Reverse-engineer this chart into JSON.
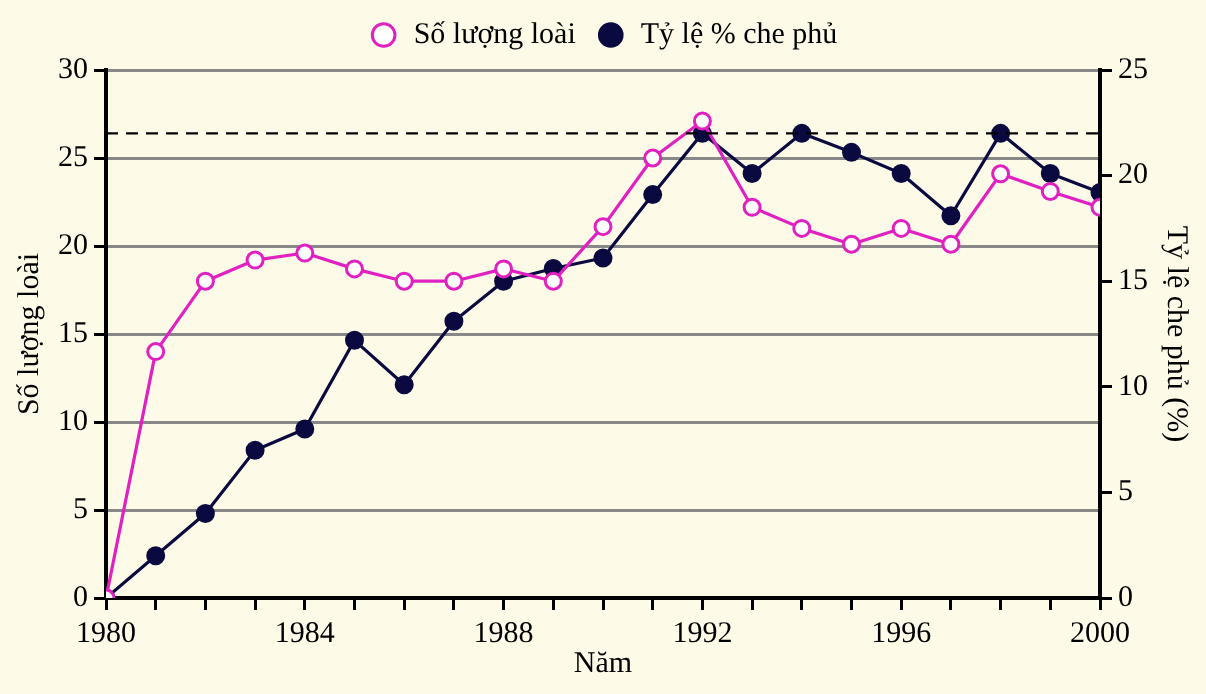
{
  "chart_data": {
    "type": "line",
    "xlabel": "Năm",
    "ylabel": "Số lượng loài",
    "y2label": "Tỷ lệ che phủ (%)",
    "x": [
      1980,
      1981,
      1982,
      1983,
      1984,
      1985,
      1986,
      1987,
      1988,
      1989,
      1990,
      1991,
      1992,
      1993,
      1994,
      1995,
      1996,
      1997,
      1998,
      1999,
      2000
    ],
    "series": [
      {
        "name": "Số lượng loài",
        "color": "#e020c0",
        "values": [
          0,
          14,
          18,
          19.2,
          19.6,
          18.7,
          18,
          18,
          18.7,
          18,
          21.1,
          25,
          27.1,
          22.2,
          21,
          20.1,
          21,
          20.1,
          24.1,
          23.1,
          22.2
        ]
      },
      {
        "name": "Tỷ lệ % che phủ",
        "color": "#0a0a40",
        "axis": "y2",
        "values": [
          0,
          2,
          4,
          7,
          8,
          12.2,
          10.1,
          13.1,
          15,
          15.6,
          16.1,
          19.1,
          22,
          20.1,
          22,
          21.1,
          20.1,
          18.1,
          22,
          20.1,
          19.2
        ]
      }
    ],
    "xlim": [
      1980,
      2000
    ],
    "xticks": [
      1980,
      {
        "value": 1981,
        "label": null
      },
      {
        "value": 1982,
        "label": null
      },
      {
        "value": 1983,
        "label": null
      },
      1984,
      {
        "value": 1985,
        "label": null
      },
      {
        "value": 1986,
        "label": null
      },
      {
        "value": 1987,
        "label": null
      },
      1988,
      {
        "value": 1989,
        "label": null
      },
      {
        "value": 1990,
        "label": null
      },
      {
        "value": 1991,
        "label": null
      },
      1992,
      {
        "value": 1993,
        "label": null
      },
      {
        "value": 1994,
        "label": null
      },
      {
        "value": 1995,
        "label": null
      },
      1996,
      {
        "value": 1997,
        "label": null
      },
      {
        "value": 1998,
        "label": null
      },
      {
        "value": 1999,
        "label": null
      },
      2000
    ],
    "ylim": [
      0,
      30
    ],
    "yticks": [
      0,
      5,
      10,
      15,
      20,
      25,
      30
    ],
    "y2lim": [
      0,
      25
    ],
    "y2ticks": [
      0,
      5,
      10,
      15,
      20,
      25
    ],
    "ref_lines": [
      {
        "axis": "y2",
        "value": 22,
        "line_style": "dashed",
        "color": "#000000"
      }
    ],
    "grid": "y",
    "legend": "top",
    "marker": "circle",
    "line_style": "solid"
  }
}
